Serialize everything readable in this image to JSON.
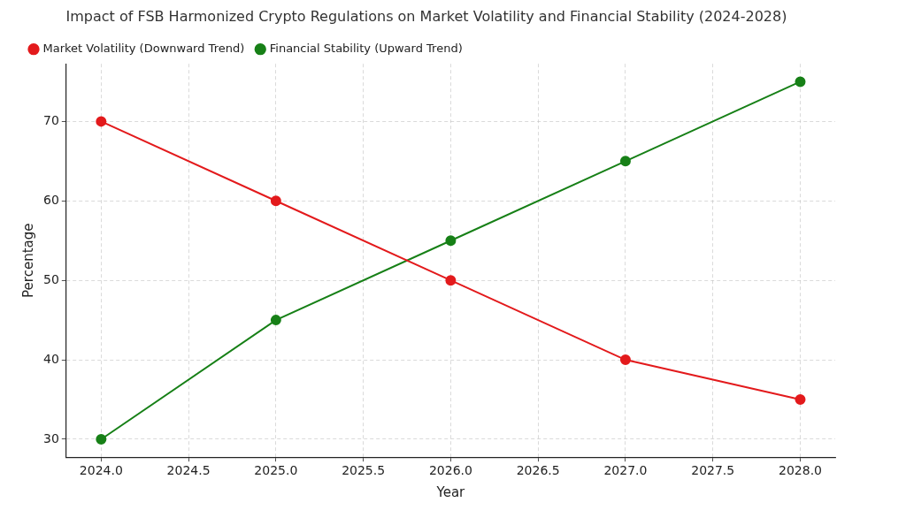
{
  "chart_data": {
    "type": "line",
    "title": "Impact of FSB Harmonized Crypto Regulations on Market Volatility and Financial Stability (2024-2028)",
    "x_label": "Year",
    "y_label": "Percentage",
    "x": [
      2024,
      2025,
      2026,
      2027,
      2028
    ],
    "series": [
      {
        "name": "Market Volatility (Downward Trend)",
        "color": "#e31a1c",
        "marker": "circle",
        "line_style": "solid",
        "values": [
          70,
          60,
          50,
          40,
          35
        ]
      },
      {
        "name": "Financial Stability (Upward Trend)",
        "color": "#178017",
        "marker": "circle",
        "line_style": "solid",
        "values": [
          30,
          45,
          55,
          65,
          75
        ]
      }
    ],
    "xlim": [
      2023.8,
      2028.2
    ],
    "xticks": [
      {
        "value": 2024,
        "label": "2024.0"
      },
      2024.5,
      {
        "value": 2025,
        "label": "2025.0"
      },
      2025.5,
      {
        "value": 2026,
        "label": "2026.0"
      },
      2026.5,
      {
        "value": 2027,
        "label": "2027.0"
      },
      2027.5,
      {
        "value": 2028,
        "label": "2028.0"
      }
    ],
    "ylim": [
      27.75,
      77.25
    ],
    "yticks": [
      30,
      40,
      50,
      60,
      70
    ],
    "grid": true,
    "legend": "upper left"
  }
}
